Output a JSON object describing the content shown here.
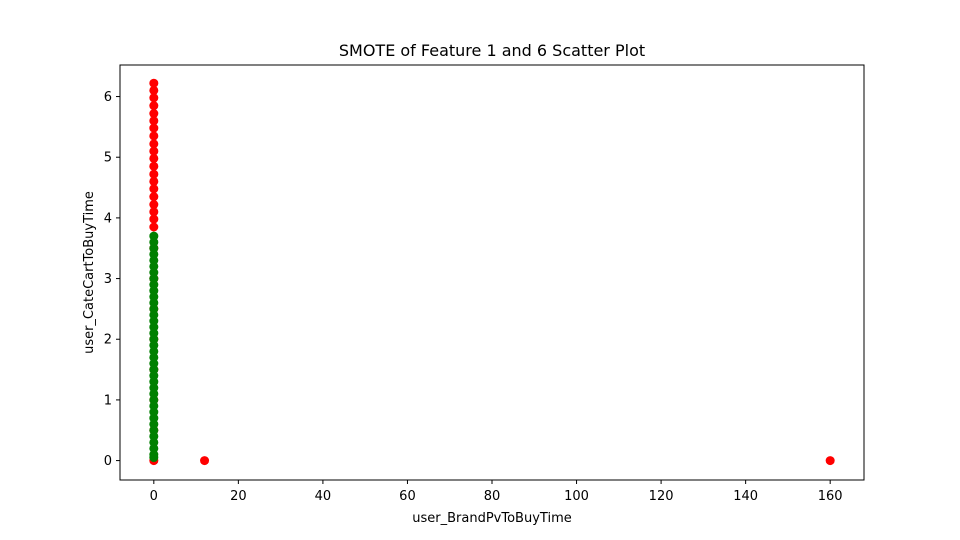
{
  "chart_data": {
    "type": "scatter",
    "title": "SMOTE of Feature 1 and 6 Scatter Plot",
    "xlabel": "user_BrandPvToBuyTime",
    "ylabel": "user_CateCartToBuyTime",
    "xlim": [
      -8,
      168
    ],
    "ylim": [
      -0.32,
      6.52
    ],
    "xticks": [
      0,
      20,
      40,
      60,
      80,
      100,
      120,
      140,
      160
    ],
    "yticks": [
      0,
      1,
      2,
      3,
      4,
      5,
      6
    ],
    "grid": false,
    "legend": "none",
    "series": [
      {
        "color": "#ff0000",
        "points": [
          [
            0,
            6.22
          ],
          [
            0,
            6.1
          ],
          [
            0,
            5.98
          ],
          [
            0,
            5.85
          ],
          [
            0,
            5.72
          ],
          [
            0,
            5.6
          ],
          [
            0,
            5.48
          ],
          [
            0,
            5.35
          ],
          [
            0,
            5.22
          ],
          [
            0,
            5.1
          ],
          [
            0,
            4.98
          ],
          [
            0,
            4.85
          ],
          [
            0,
            4.72
          ],
          [
            0,
            4.6
          ],
          [
            0,
            4.48
          ],
          [
            0,
            4.35
          ],
          [
            0,
            4.22
          ],
          [
            0,
            4.1
          ],
          [
            0,
            3.98
          ],
          [
            0,
            3.85
          ],
          [
            0,
            3.5
          ],
          [
            0,
            3.0
          ],
          [
            0,
            2.5
          ],
          [
            0,
            2.0
          ],
          [
            0,
            1.5
          ],
          [
            0,
            1.0
          ],
          [
            0,
            0.5
          ],
          [
            0,
            0.0
          ],
          [
            12,
            0.0
          ],
          [
            160,
            0.0
          ]
        ]
      },
      {
        "color": "#008000",
        "points": [
          [
            0,
            3.7
          ],
          [
            0,
            3.6
          ],
          [
            0,
            3.5
          ],
          [
            0,
            3.4
          ],
          [
            0,
            3.3
          ],
          [
            0,
            3.2
          ],
          [
            0,
            3.1
          ],
          [
            0,
            3.0
          ],
          [
            0,
            2.9
          ],
          [
            0,
            2.8
          ],
          [
            0,
            2.7
          ],
          [
            0,
            2.6
          ],
          [
            0,
            2.5
          ],
          [
            0,
            2.4
          ],
          [
            0,
            2.3
          ],
          [
            0,
            2.2
          ],
          [
            0,
            2.1
          ],
          [
            0,
            2.0
          ],
          [
            0,
            1.9
          ],
          [
            0,
            1.8
          ],
          [
            0,
            1.7
          ],
          [
            0,
            1.6
          ],
          [
            0,
            1.5
          ],
          [
            0,
            1.4
          ],
          [
            0,
            1.3
          ],
          [
            0,
            1.2
          ],
          [
            0,
            1.1
          ],
          [
            0,
            1.0
          ],
          [
            0,
            0.9
          ],
          [
            0,
            0.8
          ],
          [
            0,
            0.7
          ],
          [
            0,
            0.6
          ],
          [
            0,
            0.5
          ],
          [
            0,
            0.4
          ],
          [
            0,
            0.3
          ],
          [
            0,
            0.2
          ],
          [
            0,
            0.1
          ],
          [
            0,
            0.05
          ]
        ]
      }
    ]
  }
}
